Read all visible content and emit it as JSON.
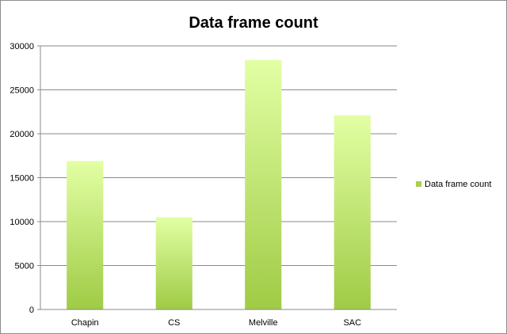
{
  "chart_data": {
    "type": "bar",
    "title": "Data frame count",
    "categories": [
      "Chapin",
      "CS",
      "Melville",
      "SAC"
    ],
    "series": [
      {
        "name": "Data frame count",
        "values": [
          16900,
          10500,
          28400,
          22100
        ]
      }
    ],
    "xlabel": "",
    "ylabel": "",
    "ylim": [
      0,
      30000
    ],
    "yticks": [
      "0",
      "5000",
      "10000",
      "15000",
      "20000",
      "25000",
      "30000"
    ],
    "grid": true,
    "legend_position": "right",
    "colors": {
      "bar_top": "#e2ffa4",
      "bar_bottom": "#9fcb45",
      "gridline": "#8a8a8a",
      "legend_swatch": "#a8d052"
    }
  }
}
